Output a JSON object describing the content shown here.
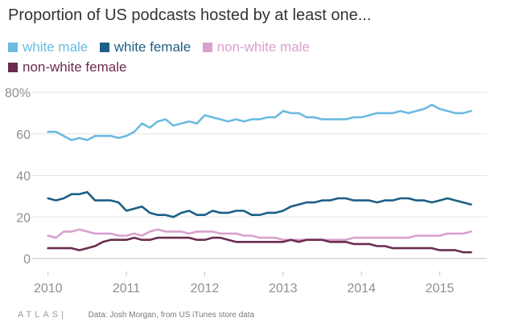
{
  "title": "Proportion of US podcasts hosted by at least one...",
  "source": "Data:  Josh Morgan, from US iTunes store data",
  "brand": "ATLAS|",
  "chart_data": {
    "type": "line",
    "title": "Proportion of US podcasts hosted by at least one...",
    "xlabel": "",
    "ylabel": "",
    "xlim": [
      2009.9,
      2015.55
    ],
    "ylim": [
      0,
      80
    ],
    "x_ticks": [
      2010,
      2011,
      2012,
      2013,
      2014,
      2015
    ],
    "y_ticks": [
      {
        "value": 0,
        "label": "0"
      },
      {
        "value": 20,
        "label": "20"
      },
      {
        "value": 40,
        "label": "40"
      },
      {
        "value": 60,
        "label": "60"
      },
      {
        "value": 80,
        "label": "80%"
      }
    ],
    "grid": "horizontal",
    "legend_position": "top-left",
    "series": [
      {
        "name": "white male",
        "color": "#6bbbe0",
        "x": [
          2010.0,
          2010.1,
          2010.2,
          2010.3,
          2010.4,
          2010.5,
          2010.6,
          2010.7,
          2010.8,
          2010.9,
          2011.0,
          2011.1,
          2011.2,
          2011.3,
          2011.4,
          2011.5,
          2011.6,
          2011.7,
          2011.8,
          2011.9,
          2012.0,
          2012.1,
          2012.2,
          2012.3,
          2012.4,
          2012.5,
          2012.6,
          2012.7,
          2012.8,
          2012.9,
          2013.0,
          2013.1,
          2013.2,
          2013.3,
          2013.4,
          2013.5,
          2013.6,
          2013.7,
          2013.8,
          2013.9,
          2014.0,
          2014.1,
          2014.2,
          2014.3,
          2014.4,
          2014.5,
          2014.6,
          2014.7,
          2014.8,
          2014.9,
          2015.0,
          2015.1,
          2015.2,
          2015.3,
          2015.4
        ],
        "y": [
          61,
          61,
          59,
          57,
          58,
          57,
          59,
          59,
          59,
          58,
          59,
          61,
          65,
          63,
          66,
          67,
          64,
          65,
          66,
          65,
          69,
          68,
          67,
          66,
          67,
          66,
          67,
          67,
          68,
          68,
          71,
          70,
          70,
          68,
          68,
          67,
          67,
          67,
          67,
          68,
          68,
          69,
          70,
          70,
          70,
          71,
          70,
          71,
          72,
          74,
          72,
          71,
          70,
          70,
          71
        ]
      },
      {
        "name": "white female",
        "color": "#1c5f86",
        "x": [
          2010.0,
          2010.1,
          2010.2,
          2010.3,
          2010.4,
          2010.5,
          2010.6,
          2010.7,
          2010.8,
          2010.9,
          2011.0,
          2011.1,
          2011.2,
          2011.3,
          2011.4,
          2011.5,
          2011.6,
          2011.7,
          2011.8,
          2011.9,
          2012.0,
          2012.1,
          2012.2,
          2012.3,
          2012.4,
          2012.5,
          2012.6,
          2012.7,
          2012.8,
          2012.9,
          2013.0,
          2013.1,
          2013.2,
          2013.3,
          2013.4,
          2013.5,
          2013.6,
          2013.7,
          2013.8,
          2013.9,
          2014.0,
          2014.1,
          2014.2,
          2014.3,
          2014.4,
          2014.5,
          2014.6,
          2014.7,
          2014.8,
          2014.9,
          2015.0,
          2015.1,
          2015.2,
          2015.3,
          2015.4
        ],
        "y": [
          29,
          28,
          29,
          31,
          31,
          32,
          28,
          28,
          28,
          27,
          23,
          24,
          25,
          22,
          21,
          21,
          20,
          22,
          23,
          21,
          21,
          23,
          22,
          22,
          23,
          23,
          21,
          21,
          22,
          22,
          23,
          25,
          26,
          27,
          27,
          28,
          28,
          29,
          29,
          28,
          28,
          28,
          27,
          28,
          28,
          29,
          29,
          28,
          28,
          27,
          28,
          29,
          28,
          27,
          26
        ]
      },
      {
        "name": "non-white male",
        "color": "#d9a0cd",
        "x": [
          2010.0,
          2010.1,
          2010.2,
          2010.3,
          2010.4,
          2010.5,
          2010.6,
          2010.7,
          2010.8,
          2010.9,
          2011.0,
          2011.1,
          2011.2,
          2011.3,
          2011.4,
          2011.5,
          2011.6,
          2011.7,
          2011.8,
          2011.9,
          2012.0,
          2012.1,
          2012.2,
          2012.3,
          2012.4,
          2012.5,
          2012.6,
          2012.7,
          2012.8,
          2012.9,
          2013.0,
          2013.1,
          2013.2,
          2013.3,
          2013.4,
          2013.5,
          2013.6,
          2013.7,
          2013.8,
          2013.9,
          2014.0,
          2014.1,
          2014.2,
          2014.3,
          2014.4,
          2014.5,
          2014.6,
          2014.7,
          2014.8,
          2014.9,
          2015.0,
          2015.1,
          2015.2,
          2015.3,
          2015.4
        ],
        "y": [
          11,
          10,
          13,
          13,
          14,
          13,
          12,
          12,
          12,
          11,
          11,
          12,
          11,
          13,
          14,
          13,
          13,
          13,
          12,
          13,
          13,
          13,
          12,
          12,
          12,
          11,
          11,
          10,
          10,
          10,
          9,
          9,
          9,
          9,
          9,
          9,
          9,
          9,
          9,
          10,
          10,
          10,
          10,
          10,
          10,
          10,
          10,
          11,
          11,
          11,
          11,
          12,
          12,
          12,
          13
        ]
      },
      {
        "name": "non-white female",
        "color": "#6b2c4f",
        "x": [
          2010.0,
          2010.1,
          2010.2,
          2010.3,
          2010.4,
          2010.5,
          2010.6,
          2010.7,
          2010.8,
          2010.9,
          2011.0,
          2011.1,
          2011.2,
          2011.3,
          2011.4,
          2011.5,
          2011.6,
          2011.7,
          2011.8,
          2011.9,
          2012.0,
          2012.1,
          2012.2,
          2012.3,
          2012.4,
          2012.5,
          2012.6,
          2012.7,
          2012.8,
          2012.9,
          2013.0,
          2013.1,
          2013.2,
          2013.3,
          2013.4,
          2013.5,
          2013.6,
          2013.7,
          2013.8,
          2013.9,
          2014.0,
          2014.1,
          2014.2,
          2014.3,
          2014.4,
          2014.5,
          2014.6,
          2014.7,
          2014.8,
          2014.9,
          2015.0,
          2015.1,
          2015.2,
          2015.3,
          2015.4
        ],
        "y": [
          5,
          5,
          5,
          5,
          4,
          5,
          6,
          8,
          9,
          9,
          9,
          10,
          9,
          9,
          10,
          10,
          10,
          10,
          10,
          9,
          9,
          10,
          10,
          9,
          8,
          8,
          8,
          8,
          8,
          8,
          8,
          9,
          8,
          9,
          9,
          9,
          8,
          8,
          8,
          7,
          7,
          7,
          6,
          6,
          5,
          5,
          5,
          5,
          5,
          5,
          4,
          4,
          4,
          3,
          3
        ]
      }
    ]
  }
}
